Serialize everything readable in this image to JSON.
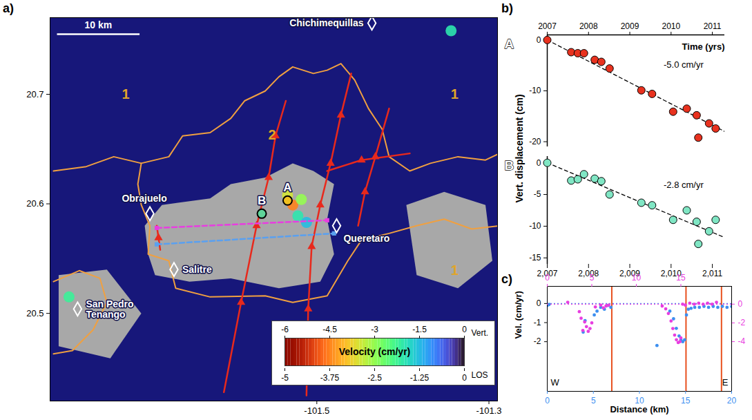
{
  "chart_data": [
    {
      "type": "map",
      "panel": "a)",
      "xlim": [
        -101.81,
        -101.29
      ],
      "ylim": [
        20.42,
        20.77
      ],
      "xticks": [
        -101.5,
        -101.3
      ],
      "yticks": [
        20.5,
        20.6,
        20.7
      ],
      "incoherent_areas": [
        [
          [
            -101.7,
            20.58
          ],
          [
            -101.68,
            20.599
          ],
          [
            -101.624,
            20.605
          ],
          [
            -101.6,
            20.618
          ],
          [
            -101.56,
            20.624
          ],
          [
            -101.528,
            20.637
          ],
          [
            -101.504,
            20.63
          ],
          [
            -101.48,
            20.618
          ],
          [
            -101.488,
            20.586
          ],
          [
            -101.48,
            20.554
          ],
          [
            -101.496,
            20.529
          ],
          [
            -101.544,
            20.523
          ],
          [
            -101.6,
            20.532
          ],
          [
            -101.648,
            20.529
          ],
          [
            -101.688,
            20.535
          ],
          [
            -101.696,
            20.554
          ]
        ],
        [
          [
            -101.396,
            20.599
          ],
          [
            -101.352,
            20.611
          ],
          [
            -101.304,
            20.599
          ],
          [
            -101.296,
            20.548
          ],
          [
            -101.336,
            20.523
          ],
          [
            -101.384,
            20.535
          ]
        ],
        [
          [
            -101.8,
            20.535
          ],
          [
            -101.744,
            20.54
          ],
          [
            -101.704,
            20.5
          ],
          [
            -101.74,
            20.459
          ],
          [
            -101.8,
            20.47
          ]
        ]
      ],
      "velocity_spots": {
        "lon": [
          -101.528,
          -101.534,
          -101.518,
          -101.522,
          -101.512,
          -101.344,
          -101.788
        ],
        "lat": [
          20.599,
          20.608,
          20.604,
          20.589,
          20.583,
          20.758,
          20.515
        ],
        "values": [
          -4.5,
          -3.5,
          -3.0,
          -2.0,
          -1.5,
          -2.0,
          -2.2
        ]
      },
      "unit_boundaries": [
        [
          [
            -101.806,
            20.63
          ],
          [
            -101.768,
            20.634
          ],
          [
            -101.736,
            20.643
          ],
          [
            -101.704,
            20.637
          ],
          [
            -101.672,
            20.643
          ],
          [
            -101.656,
            20.662
          ],
          [
            -101.624,
            20.665
          ],
          [
            -101.6,
            20.678
          ],
          [
            -101.584,
            20.694
          ],
          [
            -101.56,
            20.703
          ],
          [
            -101.544,
            20.716
          ],
          [
            -101.528,
            20.725
          ],
          [
            -101.504,
            20.719
          ],
          [
            -101.488,
            20.722
          ],
          [
            -101.472,
            20.728
          ],
          [
            -101.456,
            20.713
          ],
          [
            -101.44,
            20.687
          ],
          [
            -101.424,
            20.668
          ],
          [
            -101.416,
            20.643
          ],
          [
            -101.392,
            20.63
          ],
          [
            -101.368,
            20.637
          ],
          [
            -101.336,
            20.643
          ],
          [
            -101.304,
            20.64
          ],
          [
            -101.288,
            20.646
          ]
        ],
        [
          [
            -101.704,
            20.637
          ],
          [
            -101.708,
            20.618
          ],
          [
            -101.704,
            20.599
          ],
          [
            -101.694,
            20.58
          ],
          [
            -101.696,
            20.554
          ],
          [
            -101.672,
            20.548
          ],
          [
            -101.664,
            20.523
          ],
          [
            -101.624,
            20.515
          ],
          [
            -101.56,
            20.516
          ],
          [
            -101.528,
            20.51
          ],
          [
            -101.488,
            20.516
          ],
          [
            -101.464,
            20.548
          ],
          [
            -101.448,
            20.567
          ],
          [
            -101.416,
            20.573
          ],
          [
            -101.384,
            20.58
          ],
          [
            -101.352,
            20.586
          ],
          [
            -101.32,
            20.577
          ],
          [
            -101.288,
            20.58
          ]
        ],
        [
          [
            -101.806,
            20.529
          ],
          [
            -101.776,
            20.539
          ],
          [
            -101.752,
            20.532
          ],
          [
            -101.744,
            20.51
          ],
          [
            -101.76,
            20.485
          ],
          [
            -101.784,
            20.466
          ],
          [
            -101.806,
            20.463
          ]
        ]
      ],
      "faults": [
        [
          [
            -101.608,
            20.428
          ],
          [
            -101.588,
            20.51
          ],
          [
            -101.57,
            20.58
          ],
          [
            -101.556,
            20.624
          ],
          [
            -101.548,
            20.662
          ],
          [
            -101.536,
            20.694
          ]
        ],
        [
          [
            -101.512,
            20.425
          ],
          [
            -101.51,
            20.504
          ],
          [
            -101.506,
            20.561
          ],
          [
            -101.496,
            20.599
          ],
          [
            -101.484,
            20.637
          ],
          [
            -101.472,
            20.681
          ],
          [
            -101.46,
            20.719
          ]
        ],
        [
          [
            -101.452,
            20.58
          ],
          [
            -101.444,
            20.611
          ],
          [
            -101.432,
            20.643
          ],
          [
            -101.416,
            20.687
          ]
        ],
        [
          [
            -101.488,
            20.63
          ],
          [
            -101.448,
            20.64
          ],
          [
            -101.392,
            20.646
          ]
        ],
        [
          [
            -101.686,
            20.58
          ],
          [
            -101.684,
            20.569
          ],
          [
            -101.682,
            20.558
          ]
        ]
      ],
      "profiles": [
        {
          "color": "#e83ee0",
          "points": [
            [
              -101.686,
              20.578
            ],
            [
              -101.488,
              20.585
            ]
          ]
        },
        {
          "color": "#5aa0f0",
          "points": [
            [
              -101.686,
              20.563
            ],
            [
              -101.48,
              20.573
            ]
          ]
        }
      ],
      "towns": {
        "labels": [
          "Chichimequillas",
          "Obrajuelo",
          "Queretaro",
          "Salitre",
          "San Pedro\nTenango"
        ],
        "lon": [
          -101.436,
          -101.694,
          -101.477,
          -101.666,
          -101.778
        ],
        "lat": [
          20.765,
          20.591,
          20.58,
          20.54,
          20.504
        ]
      },
      "units": {
        "labels": [
          "1",
          "1",
          "1",
          "2"
        ],
        "lon": [
          -101.722,
          -101.34,
          -101.34,
          -101.552
        ],
        "lat": [
          20.7,
          20.7,
          20.539,
          20.663
        ]
      },
      "points": {
        "labels": [
          "A",
          "B"
        ],
        "lon": [
          -101.534,
          -101.564
        ],
        "lat": [
          20.603,
          20.591
        ],
        "colors": [
          "#f0c020",
          "#5fd49a"
        ]
      },
      "scale_bar": {
        "label": "10 km",
        "length_km": 10
      },
      "colorbar": {
        "label": "Velocity (cm/yr)",
        "vert": {
          "label": "Vert.",
          "lim": [
            -6,
            0
          ],
          "ticks": [
            -6,
            -4.5,
            -3,
            -1.5,
            0
          ]
        },
        "los": {
          "label": "LOS",
          "lim": [
            -5,
            0
          ],
          "ticks": [
            -5,
            -3.75,
            -2.5,
            -1.25,
            0
          ]
        }
      }
    },
    {
      "type": "scatter",
      "panel": "b)",
      "marker": "circle",
      "line_style": "dashed",
      "x_label": "Time (yrs)",
      "y_label": "Vert. displacement (cm)",
      "xlim": [
        2007,
        2011.3
      ],
      "xticks": [
        2007,
        2008,
        2009,
        2010,
        2011
      ],
      "series": [
        {
          "name": "A",
          "color": "#e8321f",
          "x": [
            2007.0,
            2007.58,
            2007.74,
            2007.89,
            2008.15,
            2008.31,
            2008.51,
            2009.28,
            2009.54,
            2010.05,
            2010.38,
            2010.62,
            2010.66,
            2010.92,
            2011.08
          ],
          "values": [
            0,
            -2.4,
            -2.6,
            -2.6,
            -3.9,
            -4.3,
            -5.6,
            -9.9,
            -10.6,
            -14.1,
            -13.5,
            -14.8,
            -19.2,
            -16.4,
            -17.4
          ],
          "ylim": [
            -21,
            1
          ],
          "yticks": [
            0,
            -10,
            -20
          ],
          "trend": {
            "x": [
              2007,
              2011.3
            ],
            "values": [
              0,
              -18
            ]
          },
          "rate_label": "-5.0 cm/yr"
        },
        {
          "name": "B",
          "color": "#80e6c4",
          "x": [
            2007.0,
            2007.58,
            2007.74,
            2007.89,
            2008.15,
            2008.31,
            2008.51,
            2009.28,
            2009.54,
            2010.05,
            2010.38,
            2010.62,
            2010.66,
            2010.92,
            2011.08
          ],
          "values": [
            0,
            -2.8,
            -2.6,
            -1.8,
            -2.5,
            -2.9,
            -5.0,
            -6.3,
            -6.7,
            -9.0,
            -7.5,
            -9.3,
            -12.8,
            -10.8,
            -9.0
          ],
          "ylim": [
            -16,
            1
          ],
          "yticks": [
            0,
            -5,
            -10,
            -15
          ],
          "trend": {
            "x": [
              2007,
              2011.3
            ],
            "values": [
              0,
              -11.8
            ]
          },
          "rate_label": "-2.8 cm/yr"
        }
      ]
    },
    {
      "type": "scatter",
      "panel": "c)",
      "marker": "circle",
      "x_label": "Distance (km)",
      "y_label": "Vel. (cm/yr)",
      "xlim": [
        0,
        20
      ],
      "xticks": [
        0,
        5,
        10,
        15,
        20
      ],
      "ylim": [
        -4.6,
        0.9
      ],
      "yticks": [
        0,
        -1,
        -2
      ],
      "x2lim": [
        0,
        20.7
      ],
      "x2ticks": [
        0,
        5,
        10,
        15
      ],
      "y2lim": [
        -9.3,
        1.9
      ],
      "y2ticks": [
        0,
        -2,
        -4
      ],
      "faults_km": [
        7.0,
        15.05,
        18.9
      ],
      "corner_labels": [
        "W",
        "E"
      ],
      "series": [
        {
          "color": "#3d8ff0",
          "baseline": 0,
          "x": [
            0.0,
            0.2,
            3.9,
            4.1,
            5.1,
            5.4,
            5.8,
            6.2,
            6.6,
            6.9,
            11.9,
            13.3,
            13.7,
            14.0,
            14.3,
            14.5,
            14.7,
            14.9,
            15.1,
            15.3,
            15.6,
            16.0,
            16.5,
            17.0,
            17.5,
            18.0,
            18.5,
            19.0,
            19.5,
            20.0
          ],
          "values": [
            -0.1,
            -0.05,
            -1.5,
            -0.9,
            -0.6,
            -0.4,
            -0.2,
            -0.3,
            -0.1,
            -0.2,
            -2.2,
            -0.4,
            -0.8,
            -1.3,
            -1.7,
            -1.9,
            -2.0,
            -1.9,
            -0.6,
            -0.3,
            -0.25,
            -0.2,
            -0.2,
            -0.15,
            -0.2,
            -0.15,
            -0.2,
            -0.15,
            -0.2,
            -0.15
          ]
        },
        {
          "color": "#e83ee0",
          "axis": "y2",
          "baseline": 0,
          "x": [
            2.3,
            3.6,
            3.8,
            4.0,
            4.2,
            4.4,
            4.6,
            4.8,
            5.0,
            5.4,
            6.0,
            6.3,
            6.6,
            6.9,
            12.9,
            13.3,
            13.6,
            13.9,
            14.1,
            14.3,
            14.5,
            14.7,
            14.9,
            15.0,
            15.2,
            15.5,
            16.0,
            16.5,
            17.0,
            17.5,
            18.0,
            18.5,
            19.0
          ],
          "values": [
            0.2,
            -0.8,
            -1.5,
            -2.8,
            -1.9,
            -2.4,
            -2.9,
            -2.6,
            -2.0,
            -0.3,
            -0.1,
            -0.4,
            -0.2,
            -0.1,
            -0.2,
            -0.5,
            -1.0,
            -1.8,
            -2.6,
            -3.3,
            -3.8,
            -4.1,
            -4.0,
            -3.6,
            0.0,
            -0.1,
            0.1,
            0.0,
            0.1,
            0.0,
            0.1,
            0.0,
            0.2
          ]
        }
      ]
    }
  ]
}
